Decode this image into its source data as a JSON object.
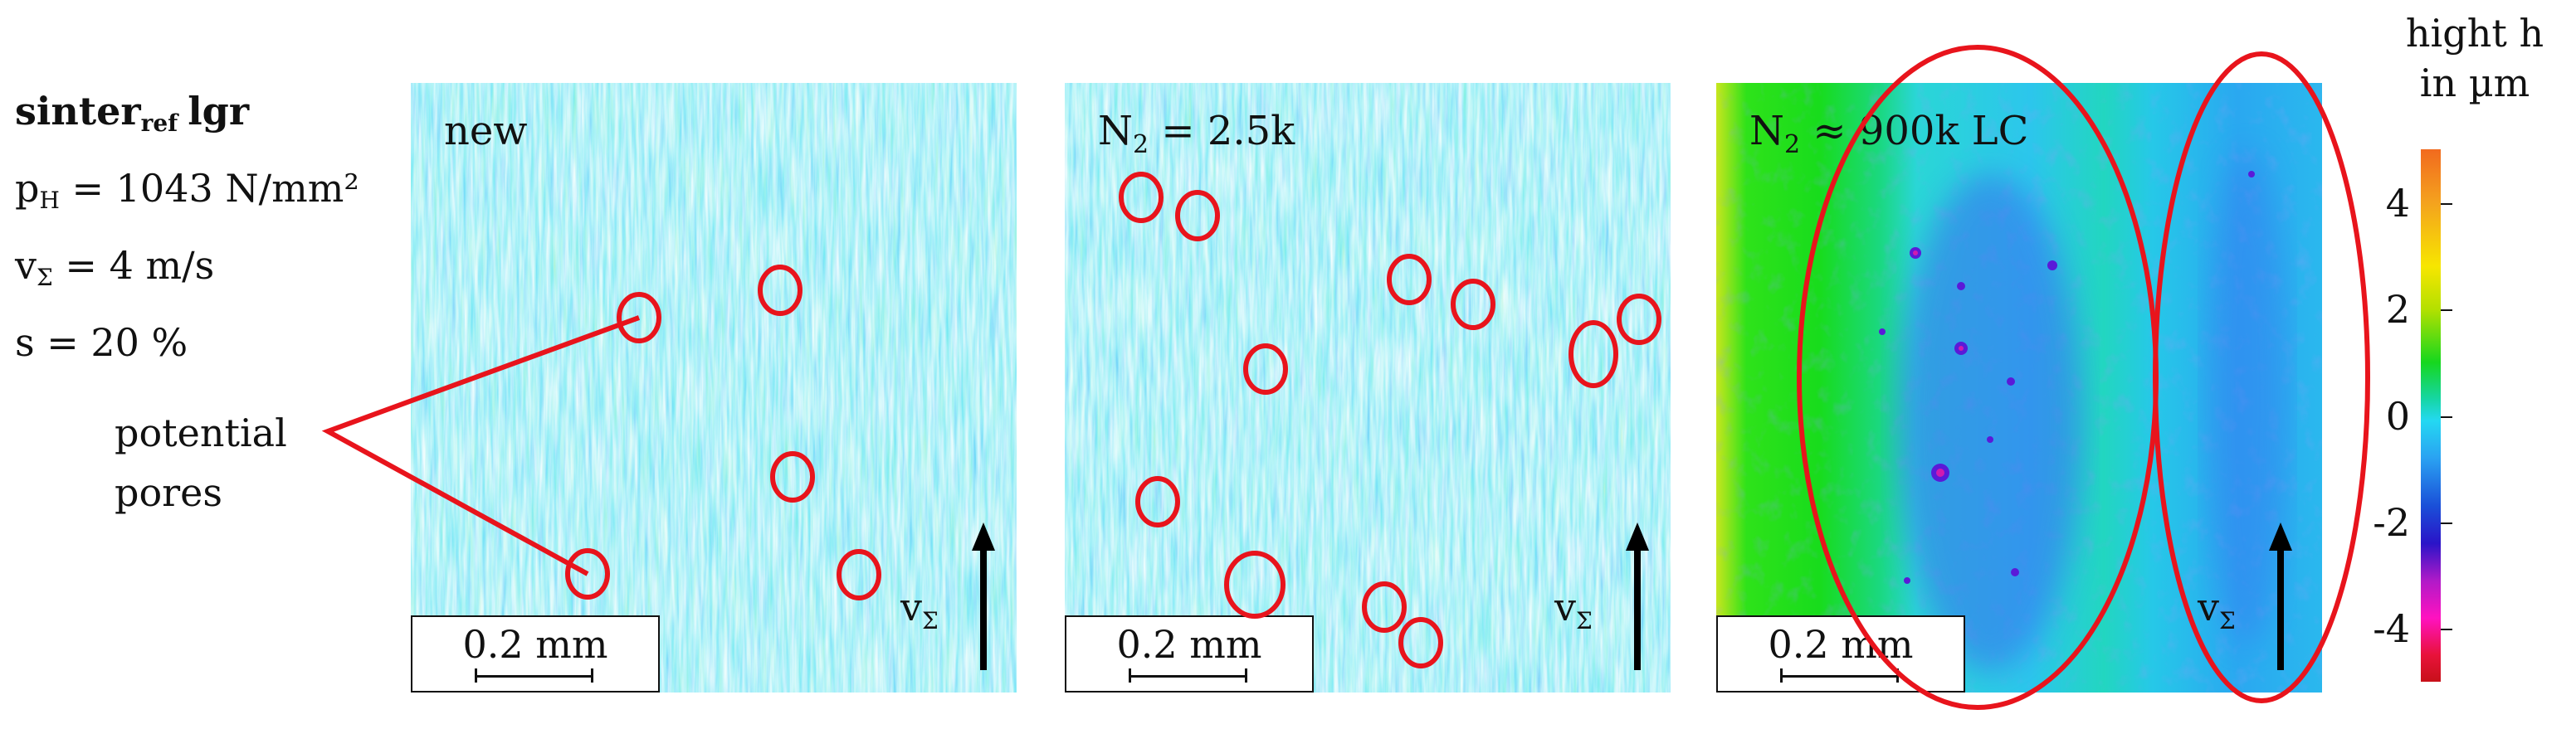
{
  "params": {
    "title_main": "sinter",
    "title_sub": "ref",
    "title_tail": "lgr",
    "p_symbol": "p",
    "p_sub": "H",
    "p_value": "= 1043 N/mm²",
    "v_symbol": "v",
    "v_sub": "Σ",
    "v_value": "= 4 m/s",
    "s_line": "s = 20 %"
  },
  "annotation": {
    "line1": "potential",
    "line2": "pores"
  },
  "panels": [
    {
      "label_main": "new",
      "label_sub": "",
      "label_tail": "",
      "scale_text": "0.2 mm",
      "v_symbol": "v",
      "v_sub": "Σ"
    },
    {
      "label_main": "N",
      "label_sub": "2",
      "label_tail": " = 2.5k",
      "scale_text": "0.2 mm",
      "v_symbol": "v",
      "v_sub": "Σ"
    },
    {
      "label_main": "N",
      "label_sub": "2",
      "label_tail": " ≈ 900k LC",
      "scale_text": "0.2 mm",
      "v_symbol": "v",
      "v_sub": "Σ"
    }
  ],
  "colorbar": {
    "title_line1": "hight h",
    "title_line2": "in µm",
    "ticks": [
      "4",
      "2",
      "0",
      "-2",
      "-4"
    ],
    "colors": {
      "high": "#f26a1e",
      "mid": "#16d71e",
      "zero": "#24d8f2",
      "low": "#2a14c8",
      "min": "#c8101a"
    }
  },
  "marker_color": "#e8141c"
}
